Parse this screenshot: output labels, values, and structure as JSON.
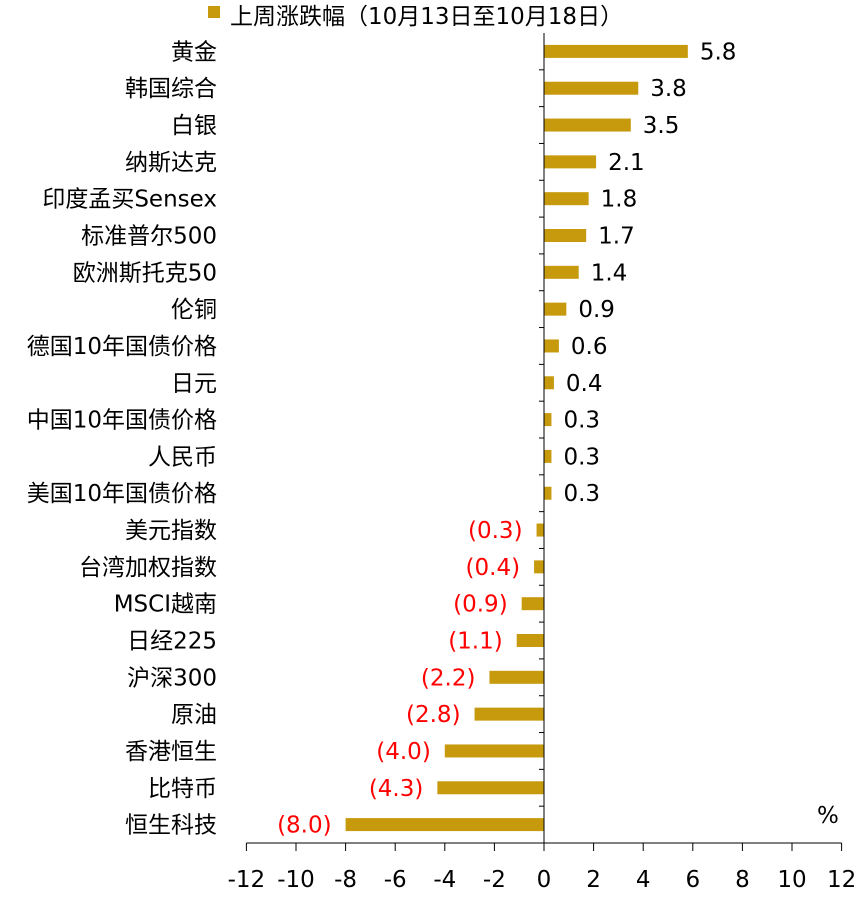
{
  "legend": {
    "label": "上周涨跌幅（10月13日至10月18日）"
  },
  "colors": {
    "bar": "#c79a0d",
    "positive_text": "#000000",
    "negative_text": "#ff0000",
    "axis": "#000000"
  },
  "chart_data": {
    "type": "bar",
    "orientation": "horizontal",
    "unit": "%",
    "xlim": [
      -12,
      12
    ],
    "xticks": [
      -12,
      -10,
      -8,
      -6,
      -4,
      -2,
      0,
      2,
      4,
      6,
      8,
      10,
      12
    ],
    "legend_position": "top",
    "categories": [
      "黄金",
      "韩国综合",
      "白银",
      "纳斯达克",
      "印度孟买Sensex",
      "标准普尔500",
      "欧洲斯托克50",
      "伦铜",
      "德国10年国债价格",
      "日元",
      "中国10年国债价格",
      "人民币",
      "美国10年国债价格",
      "美元指数",
      "台湾加权指数",
      "MSCI越南",
      "日经225",
      "沪深300",
      "原油",
      "香港恒生",
      "比特币",
      "恒生科技"
    ],
    "values": [
      5.8,
      3.8,
      3.5,
      2.1,
      1.8,
      1.7,
      1.4,
      0.9,
      0.6,
      0.4,
      0.3,
      0.3,
      0.3,
      -0.3,
      -0.4,
      -0.9,
      -1.1,
      -2.2,
      -2.8,
      -4.0,
      -4.3,
      -8.0
    ],
    "value_labels": [
      "5.8",
      "3.8",
      "3.5",
      "2.1",
      "1.8",
      "1.7",
      "1.4",
      "0.9",
      "0.6",
      "0.4",
      "0.3",
      "0.3",
      "0.3",
      "(0.3)",
      "(0.4)",
      "(0.9)",
      "(1.1)",
      "(2.2)",
      "(2.8)",
      "(4.0)",
      "(4.3)",
      "(8.0)"
    ]
  }
}
